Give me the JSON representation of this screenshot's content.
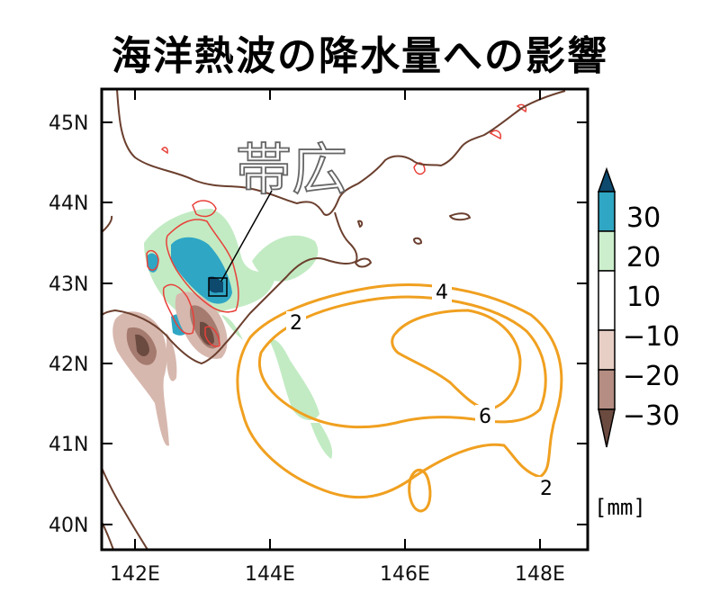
{
  "title": "海洋熱波の降水量への影響",
  "map": {
    "city_label": "帯広",
    "lon_ticks": [
      "142E",
      "144E",
      "146E",
      "148E"
    ],
    "lat_ticks": [
      "45N",
      "44N",
      "43N",
      "42N",
      "41N",
      "40N"
    ],
    "sst_contour_labels": [
      "2",
      "4",
      "6",
      "2"
    ]
  },
  "colorbar": {
    "labels": [
      "30",
      "20",
      "10",
      "−10",
      "−20",
      "−30"
    ],
    "unit": "[mm]",
    "colors": [
      "#0d4a6e",
      "#2fa6c4",
      "#cceecc",
      "#ffffff",
      "#e8cfc6",
      "#b58d82",
      "#6b4a40"
    ]
  },
  "colors": {
    "coast": "#6b3f2e",
    "sst_contour": "#f0a020",
    "red_contour": "#e8403a",
    "wet_green": "#b8e8b8",
    "wet_blue": "#2fa6c4",
    "dry_brown": "#8c5e50"
  }
}
